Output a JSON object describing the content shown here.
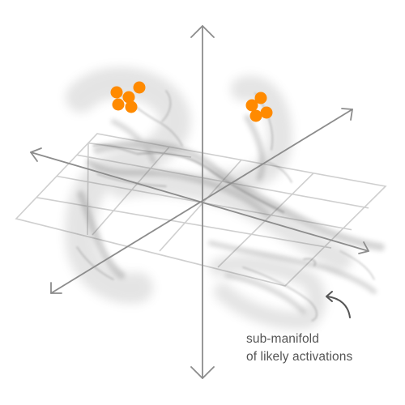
{
  "annotation": {
    "line1": "sub-manifold",
    "line2": "of likely activations"
  },
  "colors": {
    "background": "#ffffff",
    "axis": "#8c8c8c",
    "grid": "#cfcfcf",
    "smoke": "#6e6e6e",
    "points": "#ff8a00",
    "annotation_arrow": "#555555"
  },
  "icons": {
    "axis_arrowheads": "chevron-arrowhead",
    "annotation_pointer": "curved-arrow"
  }
}
